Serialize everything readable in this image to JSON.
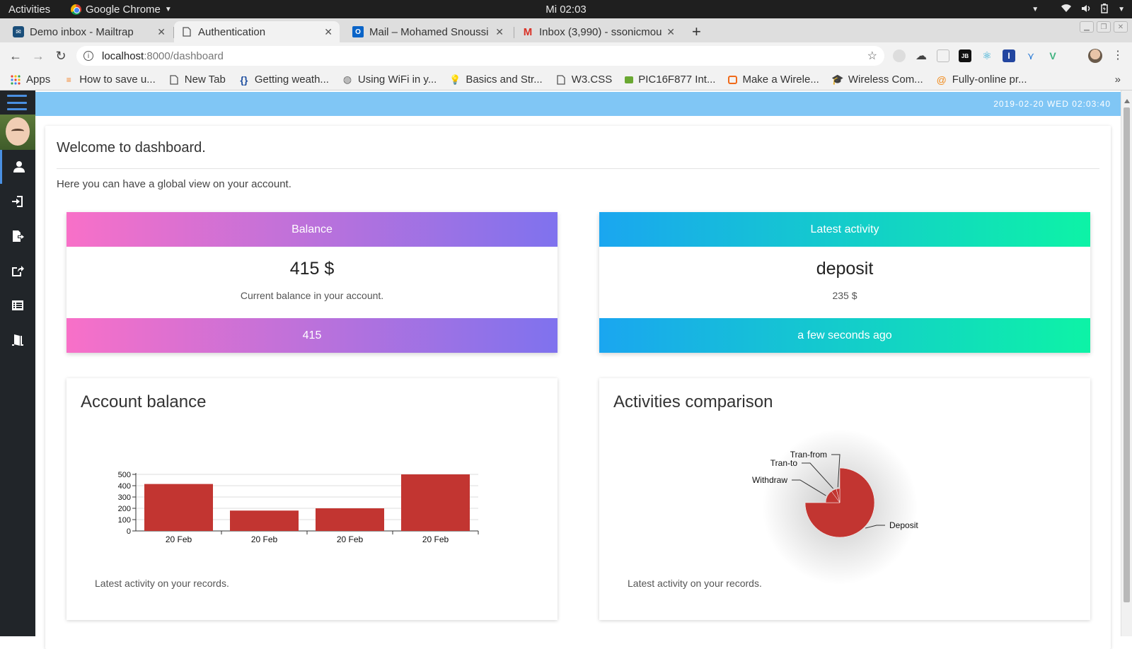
{
  "os_bar": {
    "activities": "Activities",
    "app_name": "Google Chrome",
    "clock": "Mi 02:03"
  },
  "browser": {
    "tabs": [
      {
        "title": "Demo inbox - Mailtrap",
        "icon": "mailtrap-icon",
        "active": false
      },
      {
        "title": "Authentication",
        "icon": "page-icon",
        "active": true
      },
      {
        "title": "Mail – Mohamed Snoussi -",
        "icon": "outlook-icon",
        "active": false
      },
      {
        "title": "Inbox (3,990) - ssonicmou",
        "icon": "gmail-icon",
        "active": false
      }
    ],
    "url_host": "localhost",
    "url_path": ":8000/dashboard",
    "bookmarks": [
      {
        "label": "Apps",
        "icon": "apps-grid-icon"
      },
      {
        "label": "How to save u...",
        "icon": "stackoverflow-icon"
      },
      {
        "label": "New Tab",
        "icon": "page-icon"
      },
      {
        "label": "Getting weath...",
        "icon": "braces-icon"
      },
      {
        "label": "Using WiFi in y...",
        "icon": "globe-icon"
      },
      {
        "label": "Basics and Str...",
        "icon": "bulb-icon"
      },
      {
        "label": "W3.CSS",
        "icon": "page-icon"
      },
      {
        "label": "PIC16F877 Int...",
        "icon": "chip-icon"
      },
      {
        "label": "Make a Wirele...",
        "icon": "instructables-icon"
      },
      {
        "label": "Wireless Com...",
        "icon": "hat-icon"
      },
      {
        "label": "Fully-online pr...",
        "icon": "swirl-icon"
      }
    ]
  },
  "header": {
    "datetime": "2019-02-20 WED 02:03:40"
  },
  "dashboard": {
    "title": "Welcome to dashboard.",
    "subtitle": "Here you can have a global view on your account.",
    "balance_card": {
      "header": "Balance",
      "value": "415 $",
      "caption": "Current balance in your account.",
      "footer": "415"
    },
    "activity_card": {
      "header": "Latest activity",
      "value": "deposit",
      "caption": "235 $",
      "footer": "a few seconds ago"
    },
    "balance_chart": {
      "title": "Account balance",
      "footer": "Latest activity on your records."
    },
    "activities_chart": {
      "title": "Activities comparison",
      "footer": "Latest activity on your records."
    }
  },
  "chart_data": [
    {
      "type": "bar",
      "title": "Account balance",
      "categories": [
        "20 Feb",
        "20 Feb",
        "20 Feb",
        "20 Feb"
      ],
      "values": [
        415,
        180,
        200,
        500
      ],
      "yticks": [
        0,
        100,
        200,
        300,
        400,
        500
      ],
      "ylim": [
        0,
        500
      ],
      "color": "#c23531",
      "grid": true
    },
    {
      "type": "pie",
      "title": "Activities comparison",
      "labels": [
        "Deposit",
        "Withdraw",
        "Tran-to",
        "Tran-from"
      ],
      "values": [
        75,
        15,
        6,
        4
      ],
      "color": "#c23531"
    }
  ]
}
